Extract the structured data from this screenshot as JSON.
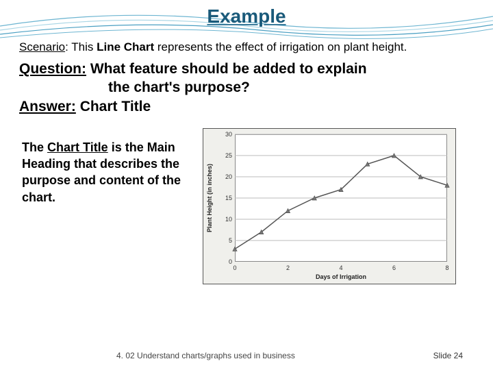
{
  "title": "Example",
  "scenario": {
    "label": "Scenario",
    "text_before": ": This ",
    "bold": "Line Chart",
    "text_after": " represents the effect of irrigation on plant height."
  },
  "question": {
    "label": "Question:",
    "line1": " What feature should be added to explain",
    "line2": "the chart's purpose?"
  },
  "answer": {
    "label": "Answer:",
    "value": "   Chart Title"
  },
  "explain": {
    "pre": "The ",
    "u": "Chart Title",
    "post": " is the Main Heading that describes the purpose and content of the chart."
  },
  "chart": {
    "type": "line",
    "xlabel": "Days of Irrigation",
    "ylabel": "Plant Height (in inches)",
    "x_values": [
      0,
      1,
      2,
      3,
      4,
      5,
      6,
      7,
      8
    ],
    "x_ticks": [
      0,
      2,
      4,
      6,
      8
    ],
    "y_ticks": [
      0,
      5,
      10,
      15,
      20,
      25,
      30
    ],
    "xlim": [
      0,
      8
    ],
    "ylim": [
      0,
      30
    ],
    "data": [
      3,
      7,
      12,
      15,
      17,
      23,
      25,
      20,
      18
    ],
    "line_color": "#555555",
    "marker": "triangle",
    "marker_color": "#777777",
    "marker_size": 6,
    "line_width": 1.5,
    "background_color": "#f0f0ec",
    "plot_bg": "#ffffff",
    "grid_color": "#bbbbbb",
    "axis_color": "#888888",
    "label_fontsize": 9,
    "tick_fontsize": 9
  },
  "footer": {
    "left": "4. 02 Understand charts/graphs used in business",
    "right": "Slide 24"
  },
  "wave_colors": [
    "#6db5d1",
    "#a8d5e5",
    "#4a9fc2"
  ]
}
